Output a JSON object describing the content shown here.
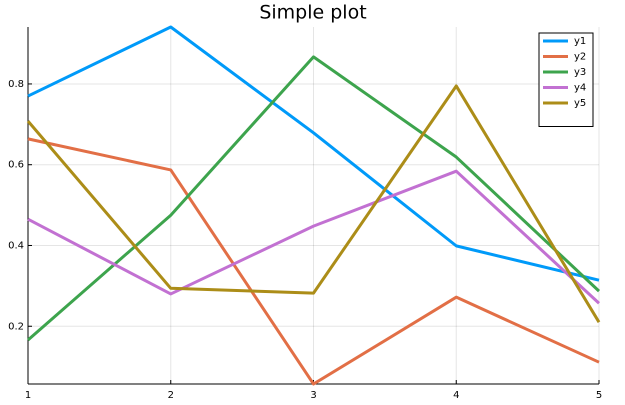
{
  "chart_data": {
    "type": "line",
    "title": "Simple plot",
    "x": [
      1,
      2,
      3,
      4,
      5
    ],
    "series": [
      {
        "name": "y1",
        "color": "#009af9",
        "values": [
          0.77,
          0.941,
          0.679,
          0.399,
          0.314
        ]
      },
      {
        "name": "y2",
        "color": "#e26f46",
        "values": [
          0.664,
          0.587,
          0.057,
          0.272,
          0.111
        ]
      },
      {
        "name": "y3",
        "color": "#3da44d",
        "values": [
          0.166,
          0.475,
          0.867,
          0.619,
          0.287
        ]
      },
      {
        "name": "y4",
        "color": "#c271d2",
        "values": [
          0.465,
          0.28,
          0.448,
          0.584,
          0.257
        ]
      },
      {
        "name": "y5",
        "color": "#ac8d18",
        "values": [
          0.708,
          0.294,
          0.282,
          0.795,
          0.21
        ]
      }
    ],
    "xlim": [
      1,
      5
    ],
    "xticks": [
      1,
      2,
      3,
      4,
      5
    ],
    "ylim": [
      0.057,
      0.941
    ],
    "yticks": [
      0.2,
      0.4,
      0.6,
      0.8
    ],
    "grid": true,
    "legend": "top-right"
  }
}
